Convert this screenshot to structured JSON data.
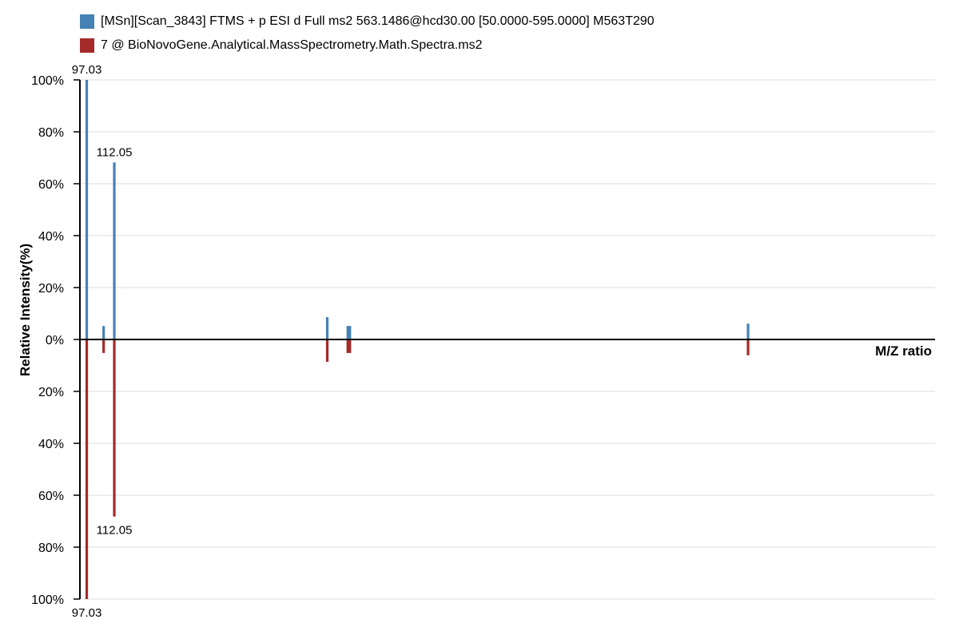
{
  "legend": {
    "items": [
      {
        "label": "[MSn][Scan_3843] FTMS + p ESI d Full ms2 563.1486@hcd30.00 [50.0000-595.0000] M563T290",
        "color": "#4682b4"
      },
      {
        "label": "7 @ BioNovoGene.Analytical.MassSpectrometry.Math.Spectra.ms2",
        "color": "#a52a2a"
      }
    ]
  },
  "chart_data": {
    "type": "bar",
    "subtype": "mirror-spectrum",
    "xlabel": "M/Z ratio",
    "ylabel": "Relative Intensity(%)",
    "xlim": [
      93.3,
      559.6
    ],
    "ylim": [
      -100,
      100
    ],
    "y_ticks": [
      {
        "value": 100,
        "label": "100%"
      },
      {
        "value": 80,
        "label": "80%"
      },
      {
        "value": 60,
        "label": "60%"
      },
      {
        "value": 40,
        "label": "40%"
      },
      {
        "value": 20,
        "label": "20%"
      },
      {
        "value": 0,
        "label": "0%"
      },
      {
        "value": -20,
        "label": "20%"
      },
      {
        "value": -40,
        "label": "40%"
      },
      {
        "value": -60,
        "label": "60%"
      },
      {
        "value": -80,
        "label": "80%"
      },
      {
        "value": -100,
        "label": "100%"
      }
    ],
    "grid": true,
    "legend_position": "top-left",
    "series": [
      {
        "name": "[MSn][Scan_3843] FTMS + p ESI d Full ms2 563.1486@hcd30.00 [50.0000-595.0000] M563T290",
        "color": "#4682b4",
        "direction": "up",
        "peaks": [
          {
            "mz": 97.03,
            "intensity": 100,
            "label": "97.03"
          },
          {
            "mz": 106.23,
            "intensity": 5.2
          },
          {
            "mz": 112.05,
            "intensity": 68.2,
            "label": "112.05"
          },
          {
            "mz": 228.18,
            "intensity": 8.6
          },
          {
            "mz": 239.38,
            "intensity": 5.2
          },
          {
            "mz": 240.51,
            "intensity": 5.2
          },
          {
            "mz": 457.65,
            "intensity": 6.1
          }
        ]
      },
      {
        "name": "7 @ BioNovoGene.Analytical.MassSpectrometry.Math.Spectra.ms2",
        "color": "#a52a2a",
        "direction": "down",
        "peaks": [
          {
            "mz": 97.03,
            "intensity": 100,
            "label": "97.03"
          },
          {
            "mz": 106.23,
            "intensity": 5.2
          },
          {
            "mz": 112.05,
            "intensity": 68.2,
            "label": "112.05"
          },
          {
            "mz": 228.18,
            "intensity": 8.6
          },
          {
            "mz": 239.38,
            "intensity": 5.2
          },
          {
            "mz": 240.51,
            "intensity": 5.2
          },
          {
            "mz": 457.65,
            "intensity": 6.1
          }
        ]
      }
    ]
  }
}
